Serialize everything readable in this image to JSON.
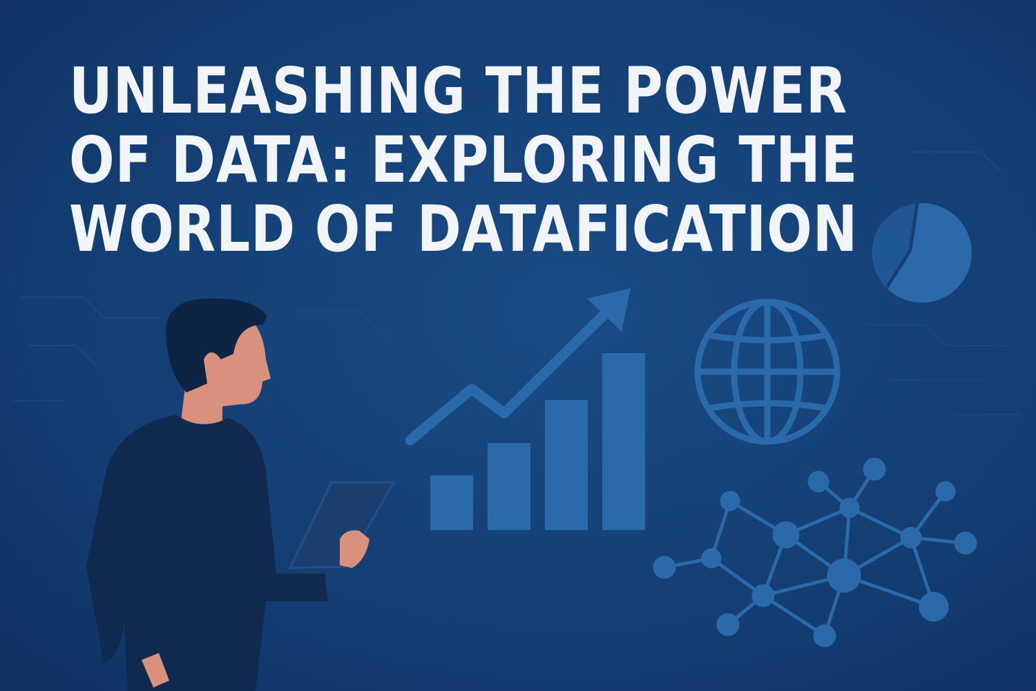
{
  "title": {
    "lines": [
      "UNLEASHING THE POWER",
      "OF DATA: EXPLORING THE",
      "WORLD OF DATAFICATION"
    ]
  },
  "colors": {
    "background": "#143f75",
    "accent": "#2a6aaa",
    "title_text": "#f1f4f8",
    "person_shirt": "#10294f",
    "person_skin": "#d9907c",
    "person_hair": "#0e2444"
  },
  "icons": [
    "pie-chart-icon",
    "globe-icon",
    "trend-arrow-icon",
    "bar-chart-icon",
    "network-graph-icon",
    "person-with-tablet"
  ]
}
